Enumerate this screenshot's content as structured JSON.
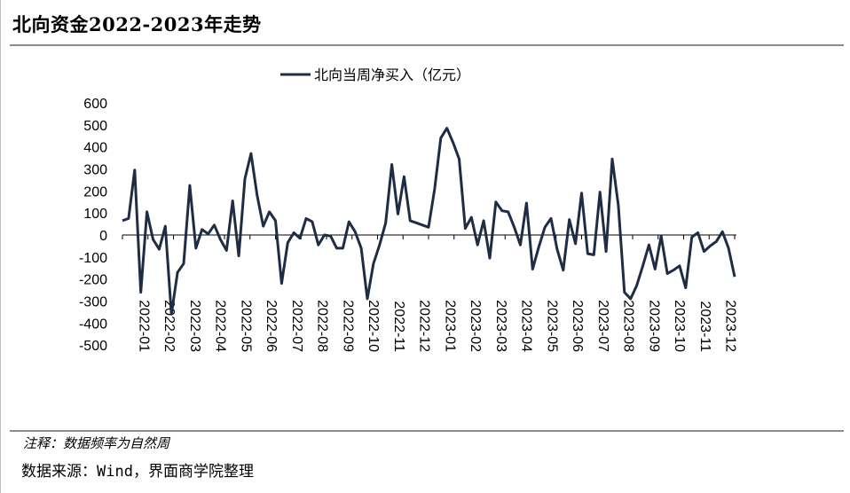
{
  "header": {
    "title": "北向资金2022-2023年走势"
  },
  "footer": {
    "note": "注释：数据频率为自然周",
    "source": "数据来源：Wind，界面商学院整理"
  },
  "chart_data": {
    "type": "line",
    "frequency": "weekly",
    "ylim": [
      -500,
      600
    ],
    "yticks": [
      600,
      500,
      400,
      300,
      200,
      100,
      0,
      -100,
      -200,
      -300,
      -400,
      -500
    ],
    "xtick_labels": [
      "2022-01",
      "2022-02",
      "2022-03",
      "2022-04",
      "2022-05",
      "2022-06",
      "2022-07",
      "2022-08",
      "2022-09",
      "2022-10",
      "2022-11",
      "2022-12",
      "2023-01",
      "2023-02",
      "2023-03",
      "2023-04",
      "2023-05",
      "2023-06",
      "2023-07",
      "2023-08",
      "2023-09",
      "2023-10",
      "2023-11",
      "2023-12"
    ],
    "series": [
      {
        "name": "北向当周净买入（亿元）",
        "color": "#1f2d44",
        "values": [
          65,
          75,
          295,
          -260,
          105,
          -20,
          -65,
          40,
          -360,
          -170,
          -130,
          225,
          -60,
          25,
          5,
          45,
          -20,
          -70,
          155,
          -95,
          255,
          370,
          180,
          40,
          105,
          65,
          -220,
          -35,
          10,
          -15,
          75,
          60,
          -45,
          0,
          -5,
          -60,
          -60,
          60,
          15,
          -60,
          -290,
          -130,
          -45,
          55,
          320,
          95,
          265,
          65,
          55,
          45,
          35,
          210,
          440,
          485,
          420,
          345,
          30,
          80,
          -45,
          65,
          -105,
          150,
          110,
          105,
          35,
          -45,
          145,
          -155,
          -55,
          35,
          75,
          -65,
          -160,
          70,
          -40,
          190,
          -85,
          -90,
          195,
          -75,
          345,
          135,
          -260,
          -290,
          -230,
          -140,
          -45,
          -155,
          -5,
          -175,
          -160,
          -140,
          -240,
          -10,
          10,
          -75,
          -50,
          -30,
          15,
          -60,
          -190
        ]
      }
    ]
  }
}
